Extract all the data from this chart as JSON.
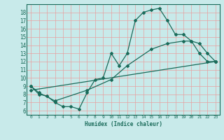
{
  "xlabel": "Humidex (Indice chaleur)",
  "background_color": "#c8eaea",
  "grid_color": "#e8a0a0",
  "line_color": "#1a6b5a",
  "xlim": [
    -0.5,
    23.5
  ],
  "ylim": [
    5.5,
    19
  ],
  "xticks": [
    0,
    1,
    2,
    3,
    4,
    5,
    6,
    7,
    8,
    9,
    10,
    11,
    12,
    13,
    14,
    15,
    16,
    17,
    18,
    19,
    20,
    21,
    22,
    23
  ],
  "yticks": [
    6,
    7,
    8,
    9,
    10,
    11,
    12,
    13,
    14,
    15,
    16,
    17,
    18
  ],
  "curve1_x": [
    0,
    1,
    2,
    3,
    4,
    5,
    6,
    7,
    8,
    9,
    10,
    11,
    12,
    13,
    14,
    15,
    16,
    17,
    18,
    19,
    20,
    21,
    22,
    23
  ],
  "curve1_y": [
    9.0,
    8.0,
    7.8,
    7.0,
    6.5,
    6.5,
    6.2,
    8.2,
    9.8,
    10.0,
    13.0,
    11.5,
    13.0,
    17.0,
    18.0,
    18.3,
    18.5,
    17.0,
    15.3,
    15.3,
    14.5,
    13.0,
    12.0,
    12.0
  ],
  "curve2_x": [
    0,
    1,
    3,
    7,
    10,
    12,
    15,
    17,
    19,
    20,
    21,
    22,
    23
  ],
  "curve2_y": [
    9.0,
    8.2,
    7.2,
    8.5,
    9.8,
    11.5,
    13.5,
    14.2,
    14.5,
    14.5,
    14.2,
    13.0,
    12.0
  ],
  "curve3_x": [
    0,
    23
  ],
  "curve3_y": [
    8.5,
    12.0
  ]
}
